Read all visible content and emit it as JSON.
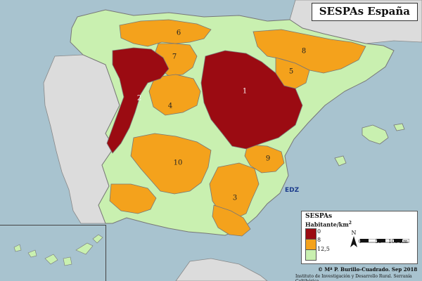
{
  "map": {
    "title": "SESPAs España",
    "regions": [
      {
        "label": "1"
      },
      {
        "label": "2"
      },
      {
        "label": "3"
      },
      {
        "label": "4"
      },
      {
        "label": "5"
      },
      {
        "label": "6"
      },
      {
        "label": "7"
      },
      {
        "label": "8"
      },
      {
        "label": "9"
      },
      {
        "label": "10"
      }
    ],
    "badge": "EDZ"
  },
  "legend": {
    "title": "SESPAs",
    "subtitle_main": "Habitante/km",
    "subtitle_sup": "2",
    "classes": [
      {
        "value": "0",
        "color": "#9b0b12"
      },
      {
        "value": "8",
        "color": "#f4a21c"
      },
      {
        "value": "12,5",
        "color": "#c9f0b0"
      }
    ],
    "north_label": "N",
    "scale_ticks": [
      "0",
      "50",
      "100 Km"
    ]
  },
  "credits": {
    "author": "© Mª P. Burillo-Cuadrado. Sep 2018",
    "institute": "Instituto de Investigación y Desarrollo Rural. Serranía Celtibérica"
  },
  "colors": {
    "sea": "#a8c3cf",
    "land": "#c9f0b0",
    "portugal": "#dcdcdc",
    "dark_red": "#9b0b12",
    "orange": "#f4a21c",
    "border": "#777777"
  }
}
